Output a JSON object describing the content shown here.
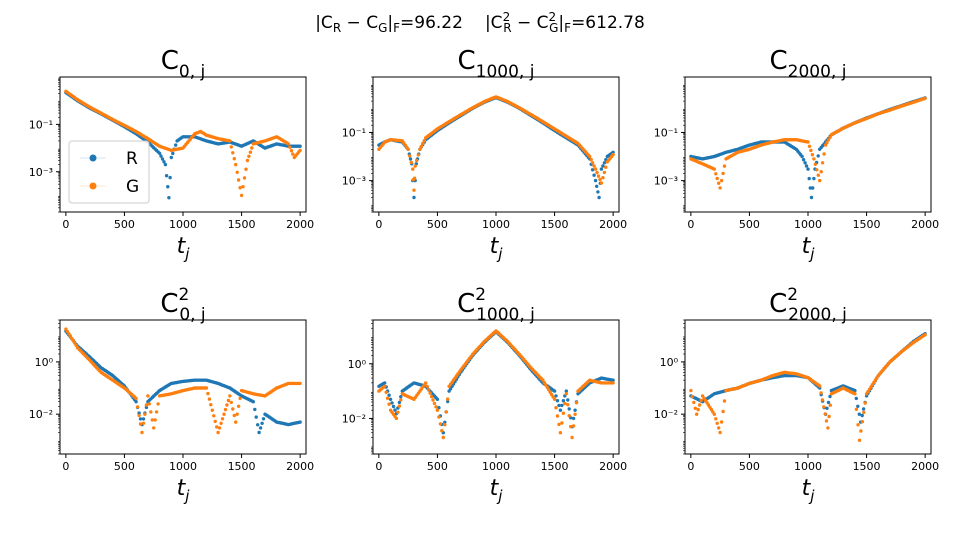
{
  "suptitle": {
    "part1_prefix": "|C",
    "part1_sub_a": "R",
    "part1_mid": " − C",
    "part1_sub_b": "G",
    "part1_suffix": "|",
    "part1_norm": "F",
    "part1_value": "=96.22",
    "part2_prefix": "|C",
    "part2_sup_a": "2",
    "part2_sub_a": "R",
    "part2_mid": " − C",
    "part2_sup_b": "2",
    "part2_sub_b": "G",
    "part2_suffix": "|",
    "part2_norm": "F",
    "part2_value": "=612.78"
  },
  "colors": {
    "R": "#1f77b4",
    "G": "#ff7f0e"
  },
  "legend": {
    "placement": "left",
    "entries": [
      "R",
      "G"
    ]
  },
  "chart_data": [
    {
      "type": "scatter",
      "title_main": "C",
      "title_sup": "",
      "title_sub": "0, j",
      "xlabel_main": "t",
      "xlabel_sub": "j",
      "yscale": "log",
      "xlim": [
        -50,
        2050
      ],
      "ylim": [
        2e-05,
        10
      ],
      "yticks": [
        0.1,
        0.001
      ],
      "ytick_labels": [
        "10⁻¹",
        "10⁻³"
      ],
      "xticks": [
        0,
        500,
        1000,
        1500,
        2000
      ],
      "xtick_labels": [
        "0",
        "500",
        "1000",
        "1500",
        "2000"
      ],
      "legend": true,
      "series": [
        {
          "name": "R",
          "x": [
            0,
            100,
            200,
            300,
            400,
            500,
            600,
            700,
            800,
            850,
            880,
            900,
            950,
            1000,
            1100,
            1200,
            1300,
            1400,
            1500,
            1600,
            1700,
            1800,
            1900,
            2000
          ],
          "y": [
            2.2,
            1.0,
            0.5,
            0.28,
            0.15,
            0.08,
            0.04,
            0.018,
            0.006,
            0.002,
            8e-05,
            0.004,
            0.02,
            0.03,
            0.03,
            0.02,
            0.015,
            0.018,
            0.012,
            0.02,
            0.01,
            0.015,
            0.012,
            0.012
          ]
        },
        {
          "name": "G",
          "x": [
            0,
            100,
            200,
            300,
            400,
            500,
            600,
            700,
            800,
            900,
            1000,
            1050,
            1100,
            1150,
            1200,
            1300,
            1400,
            1450,
            1500,
            1550,
            1600,
            1700,
            1800,
            1900,
            1950,
            2000
          ],
          "y": [
            2.5,
            1.1,
            0.55,
            0.3,
            0.16,
            0.09,
            0.05,
            0.025,
            0.012,
            0.008,
            0.01,
            0.02,
            0.04,
            0.05,
            0.035,
            0.025,
            0.02,
            0.002,
            0.0001,
            0.003,
            0.015,
            0.02,
            0.03,
            0.015,
            0.004,
            0.008
          ]
        }
      ]
    },
    {
      "type": "scatter",
      "title_main": "C",
      "title_sup": "",
      "title_sub": "1000, j",
      "xlabel_main": "t",
      "xlabel_sub": "j",
      "yscale": "log",
      "xlim": [
        -50,
        2050
      ],
      "ylim": [
        5e-05,
        20
      ],
      "yticks": [
        0.1,
        0.001
      ],
      "ytick_labels": [
        "10⁻¹",
        "10⁻³"
      ],
      "xticks": [
        0,
        500,
        1000,
        1500,
        2000
      ],
      "xtick_labels": [
        "0",
        "500",
        "1000",
        "1500",
        "2000"
      ],
      "legend": false,
      "series": [
        {
          "name": "R",
          "x": [
            0,
            50,
            100,
            200,
            250,
            280,
            300,
            320,
            350,
            400,
            500,
            600,
            700,
            800,
            900,
            1000,
            1100,
            1200,
            1300,
            1400,
            1500,
            1600,
            1700,
            1800,
            1850,
            1880,
            1900,
            1950,
            2000
          ],
          "y": [
            0.03,
            0.04,
            0.05,
            0.04,
            0.02,
            0.005,
            0.0002,
            0.005,
            0.02,
            0.05,
            0.12,
            0.25,
            0.5,
            1.0,
            1.8,
            2.8,
            1.8,
            1.0,
            0.5,
            0.25,
            0.12,
            0.06,
            0.03,
            0.008,
            0.001,
            0.0002,
            0.003,
            0.01,
            0.015
          ]
        },
        {
          "name": "G",
          "x": [
            0,
            50,
            100,
            200,
            250,
            290,
            300,
            310,
            350,
            400,
            500,
            600,
            700,
            800,
            900,
            1000,
            1100,
            1200,
            1300,
            1400,
            1500,
            1600,
            1700,
            1800,
            1850,
            1900,
            1950,
            2000
          ],
          "y": [
            0.02,
            0.04,
            0.05,
            0.045,
            0.02,
            0.003,
            0.0004,
            0.004,
            0.02,
            0.06,
            0.14,
            0.28,
            0.55,
            1.05,
            1.9,
            3.0,
            1.9,
            1.05,
            0.55,
            0.28,
            0.14,
            0.07,
            0.035,
            0.01,
            0.003,
            0.0008,
            0.006,
            0.012
          ]
        }
      ]
    },
    {
      "type": "scatter",
      "title_main": "C",
      "title_sup": "",
      "title_sub": "2000, j",
      "xlabel_main": "t",
      "xlabel_sub": "j",
      "yscale": "log",
      "xlim": [
        -50,
        2050
      ],
      "ylim": [
        5e-05,
        20
      ],
      "yticks": [
        0.1,
        0.001
      ],
      "ytick_labels": [
        "10⁻¹",
        "10⁻³"
      ],
      "xticks": [
        0,
        500,
        1000,
        1500,
        2000
      ],
      "xtick_labels": [
        "0",
        "500",
        "1000",
        "1500",
        "2000"
      ],
      "legend": false,
      "series": [
        {
          "name": "R",
          "x": [
            0,
            100,
            200,
            300,
            400,
            500,
            600,
            700,
            800,
            900,
            950,
            1000,
            1030,
            1060,
            1100,
            1200,
            1300,
            1400,
            1500,
            1600,
            1700,
            1800,
            1900,
            2000
          ],
          "y": [
            0.01,
            0.008,
            0.01,
            0.015,
            0.02,
            0.03,
            0.04,
            0.04,
            0.04,
            0.02,
            0.01,
            0.003,
            0.0002,
            0.003,
            0.02,
            0.08,
            0.15,
            0.25,
            0.4,
            0.6,
            0.9,
            1.3,
            1.9,
            2.7
          ]
        },
        {
          "name": "G",
          "x": [
            0,
            100,
            200,
            250,
            300,
            400,
            500,
            600,
            700,
            800,
            900,
            1000,
            1050,
            1100,
            1150,
            1200,
            1300,
            1400,
            1500,
            1600,
            1700,
            1800,
            1900,
            2000
          ],
          "y": [
            0.008,
            0.005,
            0.003,
            0.0005,
            0.008,
            0.015,
            0.02,
            0.03,
            0.04,
            0.05,
            0.05,
            0.04,
            0.008,
            0.001,
            0.03,
            0.08,
            0.15,
            0.25,
            0.38,
            0.6,
            0.85,
            1.25,
            1.8,
            2.6
          ]
        }
      ]
    },
    {
      "type": "scatter",
      "title_main": "C",
      "title_sup": "2",
      "title_sub": "0, j",
      "xlabel_main": "t",
      "xlabel_sub": "j",
      "yscale": "log",
      "xlim": [
        -50,
        2050
      ],
      "ylim": [
        0.0003,
        40
      ],
      "yticks": [
        1,
        0.01
      ],
      "ytick_labels": [
        "10⁰",
        "10⁻²"
      ],
      "xticks": [
        0,
        500,
        1000,
        1500,
        2000
      ],
      "xtick_labels": [
        "0",
        "500",
        "1000",
        "1500",
        "2000"
      ],
      "legend": false,
      "series": [
        {
          "name": "R",
          "x": [
            0,
            100,
            200,
            300,
            400,
            500,
            600,
            650,
            700,
            800,
            900,
            1000,
            1100,
            1200,
            1300,
            1400,
            1500,
            1600,
            1650,
            1700,
            1800,
            1900,
            2000
          ],
          "y": [
            15,
            4,
            1.6,
            0.6,
            0.3,
            0.12,
            0.03,
            0.004,
            0.03,
            0.08,
            0.15,
            0.18,
            0.2,
            0.2,
            0.15,
            0.1,
            0.05,
            0.03,
            0.002,
            0.01,
            0.005,
            0.004,
            0.005
          ]
        },
        {
          "name": "G",
          "x": [
            0,
            100,
            200,
            300,
            400,
            500,
            600,
            650,
            700,
            750,
            800,
            900,
            1000,
            1100,
            1200,
            1300,
            1400,
            1450,
            1500,
            1600,
            1700,
            1800,
            1900,
            2000
          ],
          "y": [
            18,
            3.5,
            1.2,
            0.4,
            0.2,
            0.1,
            0.04,
            0.002,
            0.05,
            0.003,
            0.05,
            0.06,
            0.08,
            0.1,
            0.1,
            0.002,
            0.05,
            0.005,
            0.08,
            0.06,
            0.05,
            0.1,
            0.15,
            0.15
          ]
        }
      ]
    },
    {
      "type": "scatter",
      "title_main": "C",
      "title_sup": "2",
      "title_sub": "1000, j",
      "xlabel_main": "t",
      "xlabel_sub": "j",
      "yscale": "log",
      "xlim": [
        -50,
        2050
      ],
      "ylim": [
        0.0005,
        40
      ],
      "yticks": [
        1,
        0.01
      ],
      "ytick_labels": [
        "10⁰",
        "10⁻²"
      ],
      "xticks": [
        0,
        500,
        1000,
        1500,
        2000
      ],
      "xtick_labels": [
        "0",
        "500",
        "1000",
        "1500",
        "2000"
      ],
      "legend": false,
      "series": [
        {
          "name": "R",
          "x": [
            0,
            50,
            100,
            150,
            200,
            300,
            400,
            500,
            550,
            600,
            700,
            800,
            900,
            1000,
            1100,
            1200,
            1300,
            1400,
            1500,
            1550,
            1600,
            1650,
            1700,
            1800,
            1900,
            2000
          ],
          "y": [
            0.15,
            0.2,
            0.05,
            0.015,
            0.1,
            0.2,
            0.15,
            0.05,
            0.003,
            0.1,
            0.5,
            2.0,
            6.0,
            15,
            6.0,
            2.0,
            0.6,
            0.2,
            0.1,
            0.02,
            0.1,
            0.005,
            0.08,
            0.2,
            0.3,
            0.25
          ]
        },
        {
          "name": "G",
          "x": [
            0,
            50,
            100,
            150,
            200,
            300,
            400,
            500,
            550,
            600,
            700,
            800,
            900,
            1000,
            1100,
            1200,
            1300,
            1400,
            1500,
            1550,
            1600,
            1650,
            1700,
            1800,
            1900,
            2000
          ],
          "y": [
            0.1,
            0.15,
            0.02,
            0.01,
            0.08,
            0.05,
            0.2,
            0.02,
            0.002,
            0.15,
            0.6,
            2.2,
            6.5,
            16,
            6.5,
            2.2,
            0.7,
            0.25,
            0.05,
            0.003,
            0.08,
            0.002,
            0.1,
            0.25,
            0.2,
            0.2
          ]
        }
      ]
    },
    {
      "type": "scatter",
      "title_main": "C",
      "title_sup": "2",
      "title_sub": "2000, j",
      "xlabel_main": "t",
      "xlabel_sub": "j",
      "yscale": "log",
      "xlim": [
        -50,
        2050
      ],
      "ylim": [
        0.0003,
        40
      ],
      "yticks": [
        1,
        0.01
      ],
      "ytick_labels": [
        "10⁰",
        "10⁻²"
      ],
      "xticks": [
        0,
        500,
        1000,
        1500,
        2000
      ],
      "xtick_labels": [
        "0",
        "500",
        "1000",
        "1500",
        "2000"
      ],
      "legend": false,
      "series": [
        {
          "name": "R",
          "x": [
            0,
            100,
            200,
            300,
            400,
            500,
            600,
            700,
            800,
            900,
            1000,
            1100,
            1150,
            1200,
            1300,
            1400,
            1450,
            1500,
            1600,
            1700,
            1800,
            1900,
            2000
          ],
          "y": [
            0.05,
            0.03,
            0.06,
            0.08,
            0.1,
            0.15,
            0.2,
            0.25,
            0.3,
            0.3,
            0.25,
            0.1,
            0.01,
            0.08,
            0.12,
            0.08,
            0.005,
            0.05,
            0.3,
            1.0,
            2.5,
            6.0,
            12
          ]
        },
        {
          "name": "G",
          "x": [
            0,
            50,
            100,
            200,
            250,
            300,
            400,
            500,
            600,
            700,
            800,
            900,
            1000,
            1100,
            1170,
            1200,
            1300,
            1400,
            1440,
            1500,
            1600,
            1700,
            1800,
            1900,
            2000
          ],
          "y": [
            0.08,
            0.01,
            0.05,
            0.01,
            0.002,
            0.08,
            0.1,
            0.15,
            0.2,
            0.3,
            0.4,
            0.35,
            0.25,
            0.12,
            0.003,
            0.06,
            0.1,
            0.06,
            0.001,
            0.06,
            0.3,
            1.0,
            2.5,
            5.5,
            11
          ]
        }
      ]
    }
  ]
}
